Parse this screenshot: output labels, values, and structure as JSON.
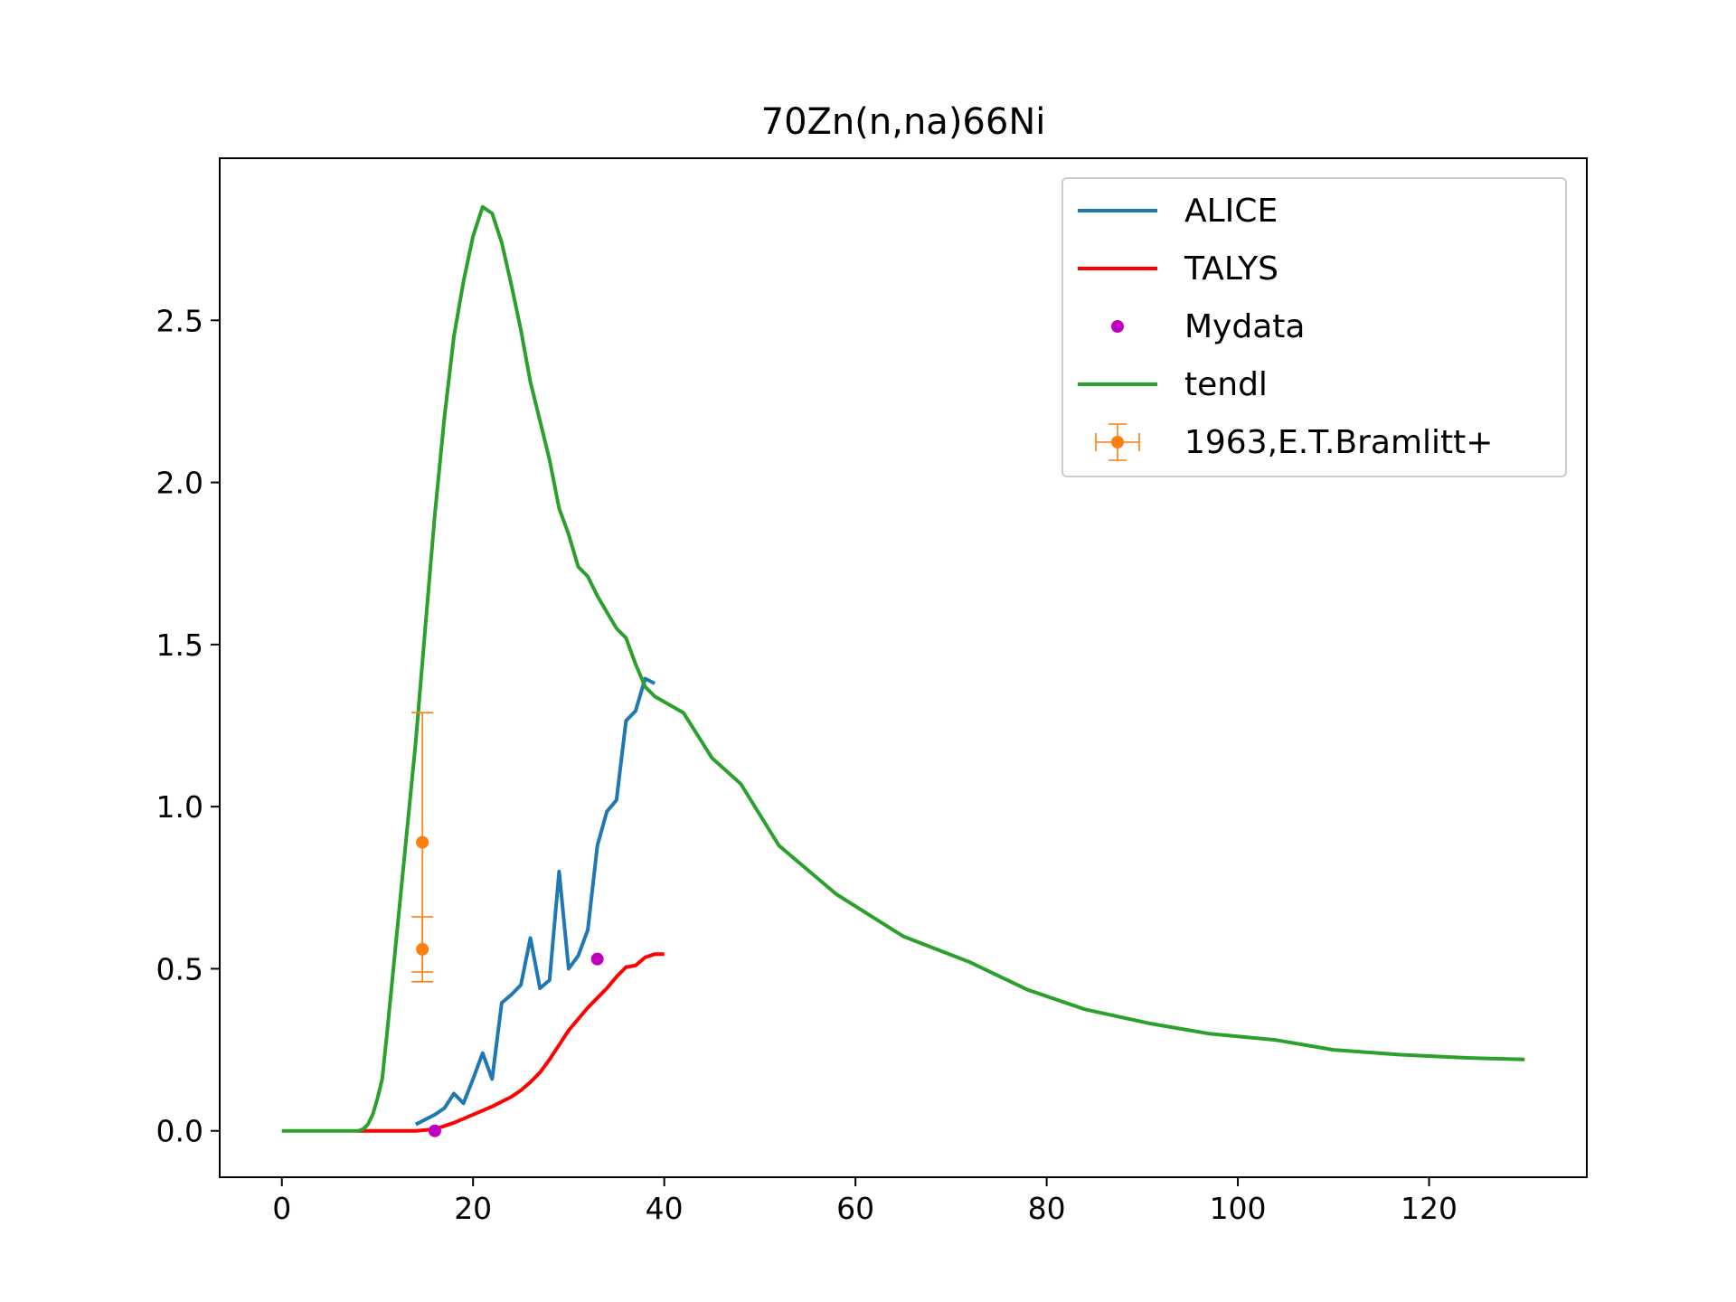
{
  "chart_data": {
    "type": "line",
    "title": "70Zn(n,na)66Ni",
    "xlabel": "",
    "ylabel": "",
    "xlim": [
      -6.5,
      136.5
    ],
    "ylim": [
      -0.143,
      3.0
    ],
    "xticks": [
      0,
      20,
      40,
      60,
      80,
      100,
      120
    ],
    "xtick_labels": [
      "0",
      "20",
      "40",
      "60",
      "80",
      "100",
      "120"
    ],
    "yticks": [
      0.0,
      0.5,
      1.0,
      1.5,
      2.0,
      2.5
    ],
    "ytick_labels": [
      "0.0",
      "0.5",
      "1.0",
      "1.5",
      "2.0",
      "2.5"
    ],
    "grid": false,
    "legend_position": "top-right",
    "series": [
      {
        "name": "ALICE",
        "kind": "line",
        "color": "#1f77b4",
        "x": [
          14,
          15,
          16,
          17,
          18,
          19,
          20,
          21,
          22,
          23,
          24,
          25,
          26,
          27,
          28,
          29,
          30,
          31,
          32,
          33,
          34,
          35,
          36,
          37,
          38,
          39
        ],
        "y": [
          0.02,
          0.035,
          0.05,
          0.07,
          0.115,
          0.085,
          0.16,
          0.24,
          0.16,
          0.395,
          0.42,
          0.45,
          0.595,
          0.44,
          0.465,
          0.8,
          0.5,
          0.54,
          0.62,
          0.88,
          0.985,
          1.02,
          1.265,
          1.295,
          1.395,
          1.38
        ]
      },
      {
        "name": "TALYS",
        "kind": "line",
        "color": "#ff0000",
        "x": [
          8,
          10,
          12,
          14,
          16,
          18,
          20,
          22,
          24,
          25,
          26,
          27,
          28,
          29,
          30,
          31,
          32,
          33,
          34,
          35,
          36,
          37,
          38,
          39,
          40
        ],
        "y": [
          0.0,
          0.0,
          0.0,
          0.0,
          0.005,
          0.025,
          0.05,
          0.075,
          0.105,
          0.125,
          0.15,
          0.18,
          0.22,
          0.265,
          0.31,
          0.345,
          0.38,
          0.41,
          0.44,
          0.475,
          0.505,
          0.51,
          0.535,
          0.545,
          0.545
        ]
      },
      {
        "name": "Mydata",
        "kind": "scatter",
        "color": "#bf00bf",
        "x": [
          16,
          33
        ],
        "y": [
          0.0,
          0.53
        ]
      },
      {
        "name": "tendl",
        "kind": "line",
        "color": "#2ca02c",
        "x": [
          0,
          5,
          8,
          8.5,
          9,
          9.5,
          10,
          10.5,
          11,
          12,
          13,
          14,
          15,
          16,
          17,
          18,
          19,
          20,
          21,
          22,
          23,
          24,
          25,
          26,
          27,
          28,
          29,
          30,
          31,
          32,
          33,
          34,
          35,
          36,
          37,
          38,
          39,
          42,
          45,
          48,
          52,
          58,
          65,
          72,
          78,
          84,
          91,
          97,
          104,
          110,
          117,
          124,
          130
        ],
        "y": [
          0.0,
          0.0,
          0.0,
          0.005,
          0.02,
          0.05,
          0.1,
          0.16,
          0.3,
          0.6,
          0.9,
          1.2,
          1.55,
          1.9,
          2.2,
          2.45,
          2.62,
          2.76,
          2.85,
          2.83,
          2.74,
          2.61,
          2.47,
          2.31,
          2.19,
          2.07,
          1.92,
          1.84,
          1.74,
          1.71,
          1.65,
          1.6,
          1.55,
          1.52,
          1.44,
          1.37,
          1.34,
          1.29,
          1.15,
          1.07,
          0.88,
          0.73,
          0.6,
          0.52,
          0.435,
          0.375,
          0.33,
          0.3,
          0.28,
          0.25,
          0.235,
          0.225,
          0.22
        ]
      },
      {
        "name": "1963,E.T.Bramlitt+",
        "kind": "errorbar",
        "color": "#ff7f0e",
        "x": [
          14.7,
          14.7
        ],
        "y": [
          0.89,
          0.56
        ],
        "yerr": [
          0.4,
          0.1
        ],
        "xerr": [
          0.0,
          0.0
        ]
      }
    ]
  }
}
